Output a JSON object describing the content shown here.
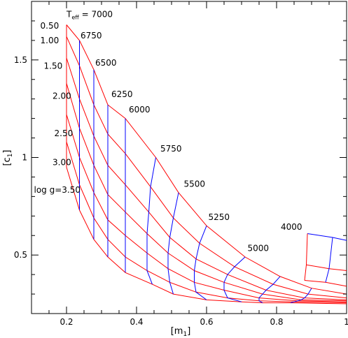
{
  "chart_data": {
    "type": "line",
    "xlabel": "[m",
    "xlabel_sub": "1",
    "xlabel_close": "]",
    "ylabel": "[c",
    "ylabel_sub": "1",
    "ylabel_close": "]",
    "xlim": [
      0.1,
      1.0
    ],
    "ylim": [
      0.2,
      1.8
    ],
    "xticks": [
      {
        "value": 0.2,
        "label": "0.2"
      },
      {
        "value": 0.4,
        "label": "0.4"
      },
      {
        "value": 0.6,
        "label": "0.6"
      },
      {
        "value": 0.8,
        "label": "0.8"
      },
      {
        "value": 1.0,
        "label": "1"
      }
    ],
    "yticks": [
      {
        "value": 0.5,
        "label": "0.5"
      },
      {
        "value": 1.0,
        "label": "1"
      },
      {
        "value": 1.5,
        "label": "1.5"
      }
    ],
    "logg": [
      "0.50",
      "1.00",
      "1.50",
      "2.00",
      "2.50",
      "3.00",
      "3.50"
    ],
    "teff": [
      "7000",
      "6750",
      "6500",
      "6250",
      "6000",
      "5750",
      "5500",
      "5250",
      "5000"
    ],
    "grid": [
      [
        [
          0.2,
          1.68
        ],
        [
          0.237,
          1.6
        ],
        [
          0.278,
          1.45
        ],
        [
          0.318,
          1.27
        ],
        [
          0.368,
          1.2
        ],
        [
          0.455,
          1.0
        ],
        [
          0.52,
          0.82
        ],
        [
          0.6,
          0.65
        ],
        [
          0.71,
          0.49
        ]
      ],
      [
        [
          0.2,
          1.62
        ],
        [
          0.237,
          1.47
        ],
        [
          0.278,
          1.27
        ],
        [
          0.318,
          1.12
        ],
        [
          0.368,
          1.02
        ],
        [
          0.44,
          0.85
        ],
        [
          0.505,
          0.69
        ],
        [
          0.58,
          0.56
        ],
        [
          0.68,
          0.44
        ]
      ],
      [
        [
          0.2,
          1.51
        ],
        [
          0.237,
          1.3
        ],
        [
          0.278,
          1.11
        ],
        [
          0.318,
          0.96
        ],
        [
          0.368,
          0.86
        ],
        [
          0.435,
          0.72
        ],
        [
          0.495,
          0.59
        ],
        [
          0.57,
          0.48
        ],
        [
          0.66,
          0.4
        ]
      ],
      [
        [
          0.2,
          1.38
        ],
        [
          0.237,
          1.15
        ],
        [
          0.278,
          0.96
        ],
        [
          0.318,
          0.81
        ],
        [
          0.368,
          0.72
        ],
        [
          0.43,
          0.61
        ],
        [
          0.49,
          0.51
        ],
        [
          0.565,
          0.42
        ],
        [
          0.65,
          0.36
        ]
      ],
      [
        [
          0.2,
          1.22
        ],
        [
          0.237,
          1.0
        ],
        [
          0.278,
          0.82
        ],
        [
          0.318,
          0.68
        ],
        [
          0.368,
          0.6
        ],
        [
          0.43,
          0.51
        ],
        [
          0.49,
          0.43
        ],
        [
          0.565,
          0.36
        ],
        [
          0.65,
          0.32
        ]
      ],
      [
        [
          0.2,
          1.08
        ],
        [
          0.237,
          0.86
        ],
        [
          0.278,
          0.69
        ],
        [
          0.318,
          0.58
        ],
        [
          0.368,
          0.49
        ],
        [
          0.43,
          0.42
        ],
        [
          0.495,
          0.36
        ],
        [
          0.57,
          0.31
        ],
        [
          0.66,
          0.28
        ]
      ],
      [
        [
          0.2,
          0.95
        ],
        [
          0.237,
          0.73
        ],
        [
          0.278,
          0.58
        ],
        [
          0.318,
          0.49
        ],
        [
          0.368,
          0.41
        ],
        [
          0.445,
          0.35
        ],
        [
          0.505,
          0.3
        ],
        [
          0.6,
          0.27
        ],
        [
          0.7,
          0.26
        ]
      ]
    ],
    "tail": [
      [
        [
          0.71,
          0.49
        ],
        [
          0.81,
          0.39
        ],
        [
          0.9,
          0.33
        ],
        [
          1.0,
          0.3
        ]
      ],
      [
        [
          0.68,
          0.44
        ],
        [
          0.79,
          0.35
        ],
        [
          0.89,
          0.3
        ],
        [
          1.0,
          0.28
        ]
      ],
      [
        [
          0.66,
          0.4
        ],
        [
          0.77,
          0.32
        ],
        [
          0.88,
          0.28
        ],
        [
          1.0,
          0.27
        ]
      ],
      [
        [
          0.65,
          0.36
        ],
        [
          0.76,
          0.3
        ],
        [
          0.87,
          0.27
        ],
        [
          1.0,
          0.265
        ]
      ],
      [
        [
          0.65,
          0.32
        ],
        [
          0.75,
          0.28
        ],
        [
          0.86,
          0.265
        ],
        [
          1.0,
          0.26
        ]
      ],
      [
        [
          0.66,
          0.28
        ],
        [
          0.75,
          0.265
        ],
        [
          0.85,
          0.26
        ],
        [
          1.0,
          0.255
        ]
      ],
      [
        [
          0.7,
          0.26
        ],
        [
          0.76,
          0.255
        ],
        [
          0.84,
          0.255
        ],
        [
          1.0,
          0.25
        ]
      ]
    ],
    "cool_patch": [
      [
        [
          0.888,
          0.61
        ],
        [
          0.96,
          0.59
        ],
        [
          1.0,
          0.575
        ]
      ],
      [
        [
          0.885,
          0.45
        ],
        [
          0.95,
          0.43
        ],
        [
          1.0,
          0.42
        ]
      ],
      [
        [
          0.88,
          0.37
        ],
        [
          0.94,
          0.36
        ],
        [
          1.0,
          0.34
        ]
      ]
    ],
    "annotations": [
      {
        "text": "0.50",
        "x": 0.125,
        "y": 1.66
      },
      {
        "text": "1.00",
        "x": 0.125,
        "y": 1.585
      },
      {
        "text": "1.50",
        "x": 0.135,
        "y": 1.455
      },
      {
        "text": "2.00",
        "x": 0.16,
        "y": 1.3
      },
      {
        "text": "2.50",
        "x": 0.165,
        "y": 1.11
      },
      {
        "text": "3.00",
        "x": 0.16,
        "y": 0.96
      },
      {
        "text": "log g=3.50",
        "x": 0.107,
        "y": 0.82
      },
      {
        "text": "T",
        "x": 0.2,
        "y": 1.72,
        "sub": "eff",
        "tail": " = 7000"
      },
      {
        "text": "6750",
        "x": 0.24,
        "y": 1.61
      },
      {
        "text": "6500",
        "x": 0.282,
        "y": 1.47
      },
      {
        "text": "6250",
        "x": 0.328,
        "y": 1.31
      },
      {
        "text": "6000",
        "x": 0.378,
        "y": 1.23
      },
      {
        "text": "5750",
        "x": 0.468,
        "y": 1.03
      },
      {
        "text": "5500",
        "x": 0.535,
        "y": 0.85
      },
      {
        "text": "5250",
        "x": 0.605,
        "y": 0.68
      },
      {
        "text": "5000",
        "x": 0.717,
        "y": 0.52
      },
      {
        "text": "4000",
        "x": 0.812,
        "y": 0.63
      }
    ],
    "colors": {
      "logg_lines": "#ff0000",
      "teff_lines": "#0000ff",
      "axis": "#000000"
    }
  }
}
